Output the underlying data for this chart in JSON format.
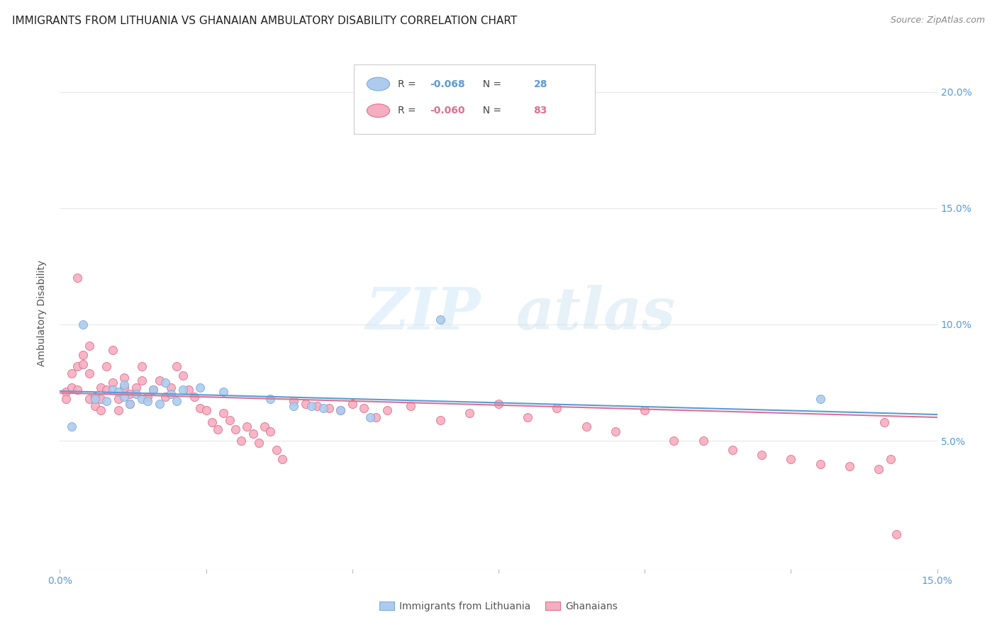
{
  "title": "IMMIGRANTS FROM LITHUANIA VS GHANAIAN AMBULATORY DISABILITY CORRELATION CHART",
  "source": "Source: ZipAtlas.com",
  "ylabel": "Ambulatory Disability",
  "xlim": [
    0.0,
    0.15
  ],
  "ylim": [
    -0.005,
    0.215
  ],
  "y_ticks": [
    0.05,
    0.1,
    0.15,
    0.2
  ],
  "x_ticks": [
    0.0,
    0.025,
    0.05,
    0.075,
    0.1,
    0.125,
    0.15
  ],
  "legend_entries": [
    {
      "label": "Immigrants from Lithuania",
      "R": "-0.068",
      "N": "28",
      "color": "#aecbee",
      "edge": "#7aaed8"
    },
    {
      "label": "Ghanaians",
      "R": "-0.060",
      "N": "83",
      "color": "#f5aec0",
      "edge": "#e07090"
    }
  ],
  "watermark_zip": "ZIP",
  "watermark_atlas": "atlas",
  "background_color": "#ffffff",
  "grid_color": "#e8e8e8",
  "title_fontsize": 11,
  "tick_color": "#5b9bd5",
  "trend_line_color_lit": "#5b9bd5",
  "trend_line_color_gha": "#e07090",
  "lit_trend": [
    0.0,
    0.0714,
    0.15,
    0.0613
  ],
  "gha_trend": [
    0.0,
    0.0706,
    0.15,
    0.0601
  ],
  "lithuania_points_x": [
    0.002,
    0.004,
    0.006,
    0.008,
    0.009,
    0.01,
    0.011,
    0.011,
    0.012,
    0.013,
    0.014,
    0.015,
    0.016,
    0.017,
    0.018,
    0.019,
    0.02,
    0.021,
    0.024,
    0.028,
    0.036,
    0.04,
    0.043,
    0.045,
    0.048,
    0.053,
    0.065,
    0.13
  ],
  "lithuania_points_y": [
    0.056,
    0.1,
    0.068,
    0.067,
    0.072,
    0.071,
    0.069,
    0.074,
    0.066,
    0.07,
    0.068,
    0.067,
    0.072,
    0.066,
    0.075,
    0.07,
    0.067,
    0.072,
    0.073,
    0.071,
    0.068,
    0.065,
    0.065,
    0.064,
    0.063,
    0.06,
    0.102,
    0.068
  ],
  "ghana_points_x": [
    0.001,
    0.001,
    0.002,
    0.002,
    0.003,
    0.003,
    0.003,
    0.004,
    0.004,
    0.005,
    0.005,
    0.005,
    0.006,
    0.006,
    0.007,
    0.007,
    0.007,
    0.008,
    0.008,
    0.009,
    0.009,
    0.01,
    0.01,
    0.011,
    0.011,
    0.012,
    0.012,
    0.013,
    0.014,
    0.014,
    0.015,
    0.016,
    0.017,
    0.018,
    0.019,
    0.02,
    0.021,
    0.022,
    0.023,
    0.024,
    0.025,
    0.026,
    0.027,
    0.028,
    0.029,
    0.03,
    0.031,
    0.032,
    0.033,
    0.034,
    0.035,
    0.036,
    0.037,
    0.038,
    0.04,
    0.042,
    0.044,
    0.046,
    0.048,
    0.05,
    0.052,
    0.054,
    0.056,
    0.06,
    0.065,
    0.07,
    0.075,
    0.08,
    0.085,
    0.09,
    0.095,
    0.1,
    0.105,
    0.11,
    0.115,
    0.12,
    0.125,
    0.13,
    0.135,
    0.14,
    0.141,
    0.142,
    0.143
  ],
  "ghana_points_y": [
    0.071,
    0.068,
    0.073,
    0.079,
    0.072,
    0.082,
    0.12,
    0.083,
    0.087,
    0.091,
    0.079,
    0.068,
    0.065,
    0.069,
    0.073,
    0.068,
    0.063,
    0.072,
    0.082,
    0.089,
    0.075,
    0.068,
    0.063,
    0.073,
    0.077,
    0.07,
    0.066,
    0.073,
    0.082,
    0.076,
    0.069,
    0.072,
    0.076,
    0.069,
    0.073,
    0.082,
    0.078,
    0.072,
    0.069,
    0.064,
    0.063,
    0.058,
    0.055,
    0.062,
    0.059,
    0.055,
    0.05,
    0.056,
    0.053,
    0.049,
    0.056,
    0.054,
    0.046,
    0.042,
    0.067,
    0.066,
    0.065,
    0.064,
    0.063,
    0.066,
    0.064,
    0.06,
    0.063,
    0.065,
    0.059,
    0.062,
    0.066,
    0.06,
    0.064,
    0.056,
    0.054,
    0.063,
    0.05,
    0.05,
    0.046,
    0.044,
    0.042,
    0.04,
    0.039,
    0.038,
    0.058,
    0.042,
    0.01
  ]
}
